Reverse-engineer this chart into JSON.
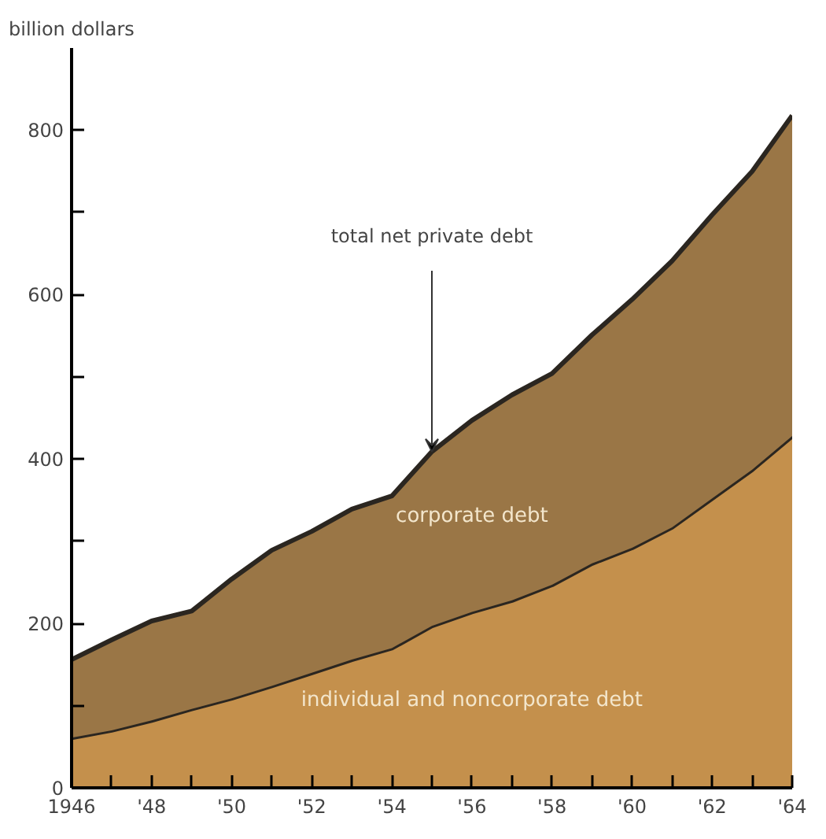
{
  "chart_data": {
    "type": "area",
    "stacked": true,
    "ylabel": "billion dollars",
    "x": [
      1946,
      1947,
      1948,
      1949,
      1950,
      1951,
      1952,
      1953,
      1954,
      1955,
      1956,
      1957,
      1958,
      1959,
      1960,
      1961,
      1962,
      1963,
      1964
    ],
    "series": [
      {
        "name": "individual and noncorporate debt",
        "color": "#c4904c",
        "values": [
          61,
          70,
          82,
          96,
          109,
          124,
          140,
          156,
          170,
          197,
          214,
          228,
          247,
          273,
          292,
          317,
          352,
          387,
          428
        ]
      },
      {
        "name": "corporate debt",
        "color": "#9a7646",
        "values": [
          95,
          110,
          121,
          119,
          145,
          165,
          172,
          183,
          185,
          212,
          233,
          250,
          257,
          278,
          302,
          324,
          345,
          363,
          390
        ]
      }
    ],
    "xlim": [
      1946,
      1964
    ],
    "ylim": [
      0,
      900
    ],
    "xticks": [
      {
        "value": 1946,
        "label": "1946"
      },
      {
        "value": 1947,
        "label": null
      },
      {
        "value": 1948,
        "label": "'48"
      },
      {
        "value": 1949,
        "label": null
      },
      {
        "value": 1950,
        "label": "'50"
      },
      {
        "value": 1951,
        "label": null
      },
      {
        "value": 1952,
        "label": "'52"
      },
      {
        "value": 1953,
        "label": null
      },
      {
        "value": 1954,
        "label": "'54"
      },
      {
        "value": 1955,
        "label": null
      },
      {
        "value": 1956,
        "label": "'56"
      },
      {
        "value": 1957,
        "label": null
      },
      {
        "value": 1958,
        "label": "'58"
      },
      {
        "value": 1959,
        "label": null
      },
      {
        "value": 1960,
        "label": "'60"
      },
      {
        "value": 1961,
        "label": null
      },
      {
        "value": 1962,
        "label": "'62"
      },
      {
        "value": 1963,
        "label": null
      },
      {
        "value": 1964,
        "label": "'64"
      }
    ],
    "yticks": [
      0,
      {
        "value": 100,
        "label": null
      },
      200,
      {
        "value": 300,
        "label": null
      },
      400,
      {
        "value": 500,
        "label": null
      },
      600,
      {
        "value": 700,
        "label": null
      },
      800
    ],
    "annotations": [
      {
        "text": "total net private debt",
        "x": 1955,
        "y": 409
      }
    ],
    "grid": false
  }
}
